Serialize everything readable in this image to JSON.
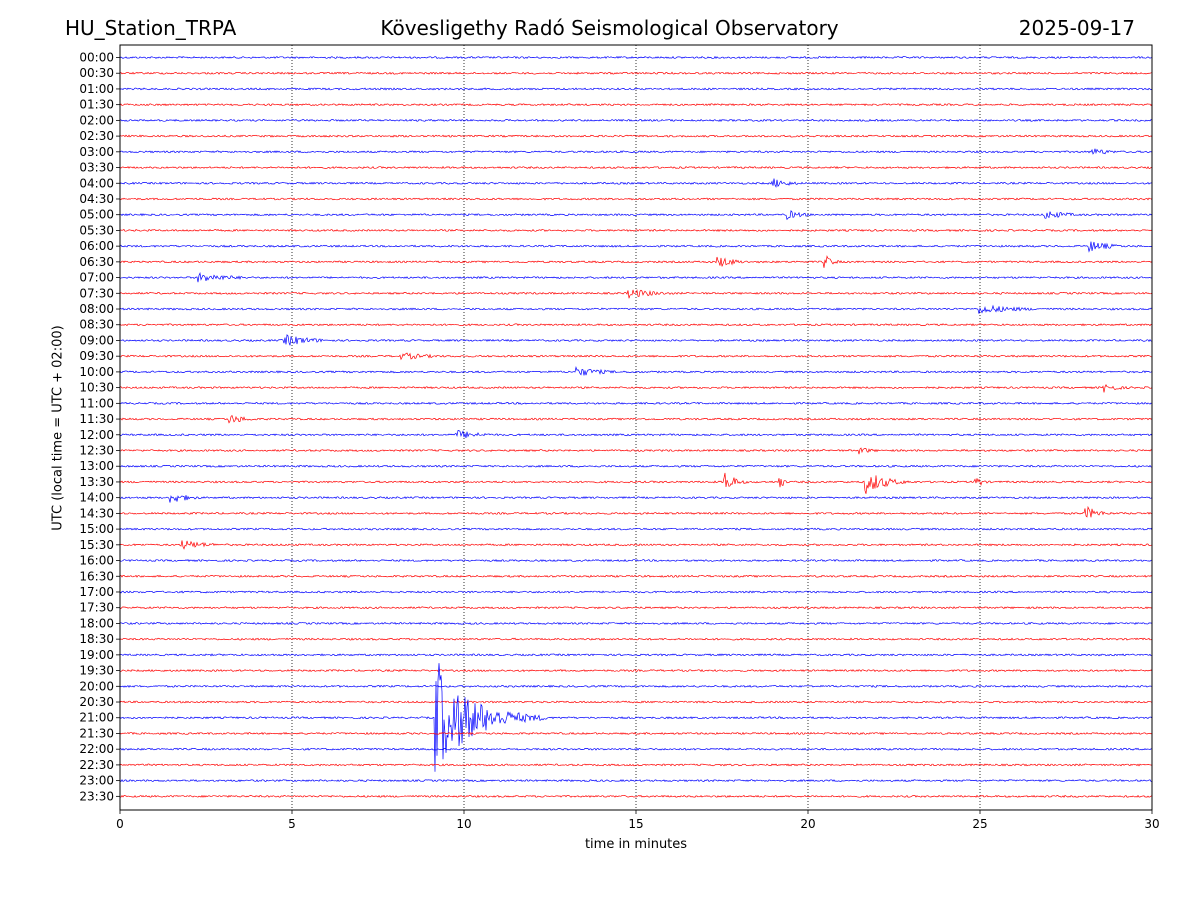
{
  "header": {
    "station": "HU_Station_TRPA",
    "title": "Kövesligethy Radó Seismological Observatory",
    "date": "2025-09-17"
  },
  "chart_data": {
    "type": "line",
    "title": "Kövesligethy Radó Seismological Observatory",
    "xlabel": "time in minutes",
    "ylabel": "UTC (local time = UTC + 02:00)",
    "xlim": [
      0,
      30
    ],
    "x_ticks": [
      "0",
      "5",
      "10",
      "15",
      "20",
      "25",
      "30"
    ],
    "grid": "vertical dotted lines at x = 5, 10, 15, 20, 25",
    "trace_colors": [
      "#0000ff",
      "#ff0000"
    ],
    "rows": [
      {
        "label": "00:00",
        "events": []
      },
      {
        "label": "00:30",
        "events": []
      },
      {
        "label": "01:00",
        "events": []
      },
      {
        "label": "01:30",
        "events": []
      },
      {
        "label": "02:00",
        "events": []
      },
      {
        "label": "02:30",
        "events": []
      },
      {
        "label": "03:00",
        "events": [
          {
            "t": 28.3,
            "amp": 4,
            "dur": 1.6
          }
        ]
      },
      {
        "label": "03:30",
        "events": []
      },
      {
        "label": "04:00",
        "events": [
          {
            "t": 19.0,
            "amp": 5,
            "dur": 1.6
          }
        ]
      },
      {
        "label": "04:30",
        "events": []
      },
      {
        "label": "05:00",
        "events": [
          {
            "t": 19.4,
            "amp": 5,
            "dur": 1.4
          },
          {
            "t": 26.9,
            "amp": 5,
            "dur": 2.0
          }
        ]
      },
      {
        "label": "05:30",
        "events": []
      },
      {
        "label": "06:00",
        "events": [
          {
            "t": 28.2,
            "amp": 6,
            "dur": 1.8
          }
        ]
      },
      {
        "label": "06:30",
        "events": [
          {
            "t": 17.4,
            "amp": 6,
            "dur": 1.6
          },
          {
            "t": 20.5,
            "amp": 7,
            "dur": 0.8
          }
        ]
      },
      {
        "label": "07:00",
        "events": [
          {
            "t": 2.3,
            "amp": 5,
            "dur": 3.0
          }
        ]
      },
      {
        "label": "07:30",
        "events": [
          {
            "t": 14.8,
            "amp": 5,
            "dur": 2.6
          }
        ]
      },
      {
        "label": "08:00",
        "events": [
          {
            "t": 25.0,
            "amp": 5,
            "dur": 3.5
          }
        ]
      },
      {
        "label": "08:30",
        "events": []
      },
      {
        "label": "09:00",
        "events": [
          {
            "t": 4.8,
            "amp": 6,
            "dur": 2.6
          }
        ]
      },
      {
        "label": "09:30",
        "events": [
          {
            "t": 8.2,
            "amp": 4,
            "dur": 2.6
          }
        ]
      },
      {
        "label": "10:00",
        "events": [
          {
            "t": 13.3,
            "amp": 5,
            "dur": 2.4
          }
        ]
      },
      {
        "label": "10:30",
        "events": [
          {
            "t": 28.6,
            "amp": 5,
            "dur": 1.4
          }
        ]
      },
      {
        "label": "11:00",
        "events": []
      },
      {
        "label": "11:30",
        "events": [
          {
            "t": 3.2,
            "amp": 5,
            "dur": 1.6
          }
        ]
      },
      {
        "label": "12:00",
        "events": [
          {
            "t": 9.8,
            "amp": 5,
            "dur": 2.2
          }
        ]
      },
      {
        "label": "12:30",
        "events": [
          {
            "t": 21.5,
            "amp": 4,
            "dur": 1.2
          }
        ]
      },
      {
        "label": "13:00",
        "events": []
      },
      {
        "label": "13:30",
        "events": [
          {
            "t": 17.6,
            "amp": 11,
            "dur": 0.9
          },
          {
            "t": 19.2,
            "amp": 8,
            "dur": 0.3
          },
          {
            "t": 21.7,
            "amp": 12,
            "dur": 1.8
          },
          {
            "t": 24.9,
            "amp": 6,
            "dur": 0.6
          }
        ]
      },
      {
        "label": "14:00",
        "events": [
          {
            "t": 1.5,
            "amp": 6,
            "dur": 1.6
          }
        ]
      },
      {
        "label": "14:30",
        "events": [
          {
            "t": 28.1,
            "amp": 7,
            "dur": 1.2
          }
        ]
      },
      {
        "label": "15:00",
        "events": []
      },
      {
        "label": "15:30",
        "events": [
          {
            "t": 1.8,
            "amp": 5,
            "dur": 2.4
          }
        ]
      },
      {
        "label": "16:00",
        "events": []
      },
      {
        "label": "16:30",
        "events": []
      },
      {
        "label": "17:00",
        "events": []
      },
      {
        "label": "17:30",
        "events": []
      },
      {
        "label": "18:00",
        "events": []
      },
      {
        "label": "18:30",
        "events": []
      },
      {
        "label": "19:00",
        "events": []
      },
      {
        "label": "19:30",
        "events": []
      },
      {
        "label": "20:00",
        "events": []
      },
      {
        "label": "20:30",
        "events": []
      },
      {
        "label": "21:00",
        "events": [
          {
            "t": 9.2,
            "amp": 55,
            "dur": 3.2
          }
        ]
      },
      {
        "label": "21:30",
        "events": []
      },
      {
        "label": "22:00",
        "events": []
      },
      {
        "label": "22:30",
        "events": []
      },
      {
        "label": "23:00",
        "events": []
      },
      {
        "label": "23:30",
        "events": []
      }
    ]
  }
}
